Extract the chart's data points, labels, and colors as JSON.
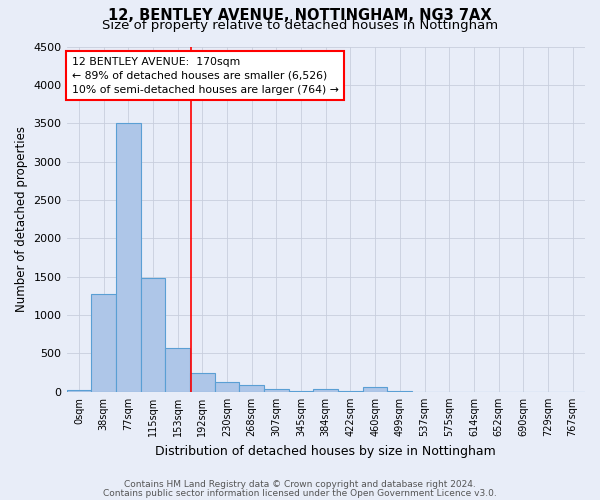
{
  "title_line1": "12, BENTLEY AVENUE, NOTTINGHAM, NG3 7AX",
  "title_line2": "Size of property relative to detached houses in Nottingham",
  "xlabel": "Distribution of detached houses by size in Nottingham",
  "ylabel": "Number of detached properties",
  "footnote1": "Contains HM Land Registry data © Crown copyright and database right 2024.",
  "footnote2": "Contains public sector information licensed under the Open Government Licence v3.0.",
  "bar_labels": [
    "0sqm",
    "38sqm",
    "77sqm",
    "115sqm",
    "153sqm",
    "192sqm",
    "230sqm",
    "268sqm",
    "307sqm",
    "345sqm",
    "384sqm",
    "422sqm",
    "460sqm",
    "499sqm",
    "537sqm",
    "575sqm",
    "614sqm",
    "652sqm",
    "690sqm",
    "729sqm",
    "767sqm"
  ],
  "bar_values": [
    30,
    1280,
    3500,
    1480,
    570,
    240,
    130,
    90,
    40,
    15,
    40,
    5,
    60,
    5,
    0,
    0,
    0,
    0,
    0,
    0,
    0
  ],
  "bar_color": "#aec6e8",
  "bar_edgecolor": "#5a9fd4",
  "background_color": "#e8edf8",
  "grid_color": "#c8cedd",
  "ylim": [
    0,
    4500
  ],
  "yticks": [
    0,
    500,
    1000,
    1500,
    2000,
    2500,
    3000,
    3500,
    4000,
    4500
  ],
  "red_line_x": 4.55,
  "annotation_text": "12 BENTLEY AVENUE:  170sqm\n← 89% of detached houses are smaller (6,526)\n10% of semi-detached houses are larger (764) →",
  "annotation_box_color": "white",
  "annotation_border_color": "red",
  "title_fontsize": 10.5,
  "subtitle_fontsize": 9.5,
  "footnote_fontsize": 6.5
}
